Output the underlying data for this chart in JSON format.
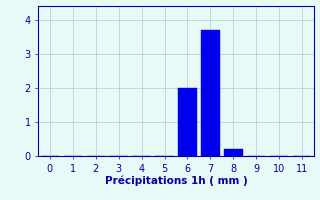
{
  "categories": [
    0,
    1,
    2,
    3,
    4,
    5,
    6,
    7,
    8,
    9,
    10,
    11
  ],
  "values": [
    0,
    0,
    0,
    0,
    0,
    0,
    2.0,
    3.7,
    0.2,
    0,
    0,
    0
  ],
  "bar_color": "#0000EE",
  "bar_edge_color": "#0000EE",
  "background_color": "#E8FAF8",
  "grid_color": "#B0D8D8",
  "xlabel": "Précipitations 1h ( mm )",
  "xlim": [
    -0.5,
    11.5
  ],
  "ylim": [
    0,
    4.4
  ],
  "yticks": [
    0,
    1,
    2,
    3,
    4
  ],
  "xticks": [
    0,
    1,
    2,
    3,
    4,
    5,
    6,
    7,
    8,
    9,
    10,
    11
  ],
  "tick_color": "#0000AA",
  "label_color": "#0000AA",
  "label_fontsize": 7.5,
  "tick_fontsize": 7.0,
  "bar_width": 0.8
}
